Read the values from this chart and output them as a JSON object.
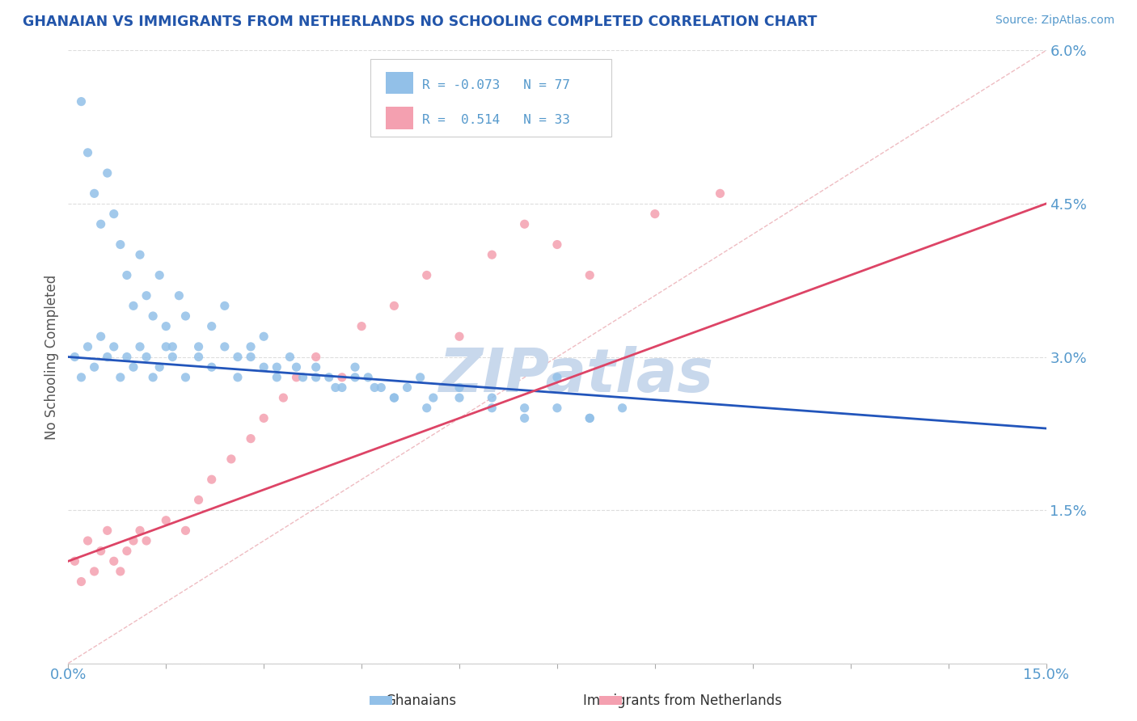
{
  "title": "GHANAIAN VS IMMIGRANTS FROM NETHERLANDS NO SCHOOLING COMPLETED CORRELATION CHART",
  "source": "Source: ZipAtlas.com",
  "ylabel": "No Schooling Completed",
  "ytick_vals": [
    0.0,
    0.015,
    0.03,
    0.045,
    0.06
  ],
  "ytick_labels": [
    "",
    "1.5%",
    "3.0%",
    "4.5%",
    "6.0%"
  ],
  "xlim": [
    0.0,
    0.15
  ],
  "ylim": [
    0.0,
    0.06
  ],
  "r_ghanaian": -0.073,
  "n_ghanaian": 77,
  "r_netherlands": 0.514,
  "n_netherlands": 33,
  "color_ghanaian": "#92C0E8",
  "color_netherlands": "#F4A0B0",
  "color_line_ghanaian": "#2255BB",
  "color_line_netherlands": "#DD4466",
  "color_diag": "#E8A0A8",
  "watermark_color": "#C8D8EC",
  "background_color": "#FFFFFF",
  "grid_color": "#DDDDDD",
  "title_color": "#2255AA",
  "source_color": "#5599CC",
  "axis_label_color": "#555555",
  "tick_color": "#5599CC",
  "ghanaian_x": [
    0.002,
    0.003,
    0.004,
    0.005,
    0.006,
    0.007,
    0.008,
    0.009,
    0.01,
    0.011,
    0.012,
    0.013,
    0.014,
    0.015,
    0.016,
    0.017,
    0.018,
    0.02,
    0.022,
    0.024,
    0.026,
    0.028,
    0.03,
    0.032,
    0.034,
    0.036,
    0.038,
    0.04,
    0.042,
    0.044,
    0.046,
    0.048,
    0.05,
    0.052,
    0.054,
    0.056,
    0.06,
    0.065,
    0.07,
    0.075,
    0.08,
    0.085,
    0.001,
    0.002,
    0.003,
    0.004,
    0.005,
    0.006,
    0.007,
    0.008,
    0.009,
    0.01,
    0.011,
    0.012,
    0.013,
    0.014,
    0.015,
    0.016,
    0.018,
    0.02,
    0.022,
    0.024,
    0.026,
    0.028,
    0.03,
    0.032,
    0.035,
    0.038,
    0.041,
    0.044,
    0.047,
    0.05,
    0.055,
    0.06,
    0.065,
    0.07,
    0.075,
    0.08
  ],
  "ghanaian_y": [
    0.055,
    0.05,
    0.046,
    0.043,
    0.048,
    0.044,
    0.041,
    0.038,
    0.035,
    0.04,
    0.036,
    0.034,
    0.038,
    0.033,
    0.031,
    0.036,
    0.034,
    0.031,
    0.033,
    0.035,
    0.03,
    0.031,
    0.032,
    0.029,
    0.03,
    0.028,
    0.029,
    0.028,
    0.027,
    0.029,
    0.028,
    0.027,
    0.026,
    0.027,
    0.028,
    0.026,
    0.027,
    0.026,
    0.025,
    0.028,
    0.024,
    0.025,
    0.03,
    0.028,
    0.031,
    0.029,
    0.032,
    0.03,
    0.031,
    0.028,
    0.03,
    0.029,
    0.031,
    0.03,
    0.028,
    0.029,
    0.031,
    0.03,
    0.028,
    0.03,
    0.029,
    0.031,
    0.028,
    0.03,
    0.029,
    0.028,
    0.029,
    0.028,
    0.027,
    0.028,
    0.027,
    0.026,
    0.025,
    0.026,
    0.025,
    0.024,
    0.025,
    0.024
  ],
  "netherlands_x": [
    0.001,
    0.002,
    0.003,
    0.004,
    0.005,
    0.006,
    0.007,
    0.008,
    0.009,
    0.01,
    0.011,
    0.012,
    0.015,
    0.018,
    0.02,
    0.022,
    0.025,
    0.028,
    0.03,
    0.033,
    0.035,
    0.038,
    0.042,
    0.045,
    0.05,
    0.055,
    0.06,
    0.065,
    0.07,
    0.075,
    0.08,
    0.09,
    0.1
  ],
  "netherlands_y": [
    0.01,
    0.008,
    0.012,
    0.009,
    0.011,
    0.013,
    0.01,
    0.009,
    0.011,
    0.012,
    0.013,
    0.012,
    0.014,
    0.013,
    0.016,
    0.018,
    0.02,
    0.022,
    0.024,
    0.026,
    0.028,
    0.03,
    0.028,
    0.033,
    0.035,
    0.038,
    0.032,
    0.04,
    0.043,
    0.041,
    0.038,
    0.044,
    0.046
  ]
}
